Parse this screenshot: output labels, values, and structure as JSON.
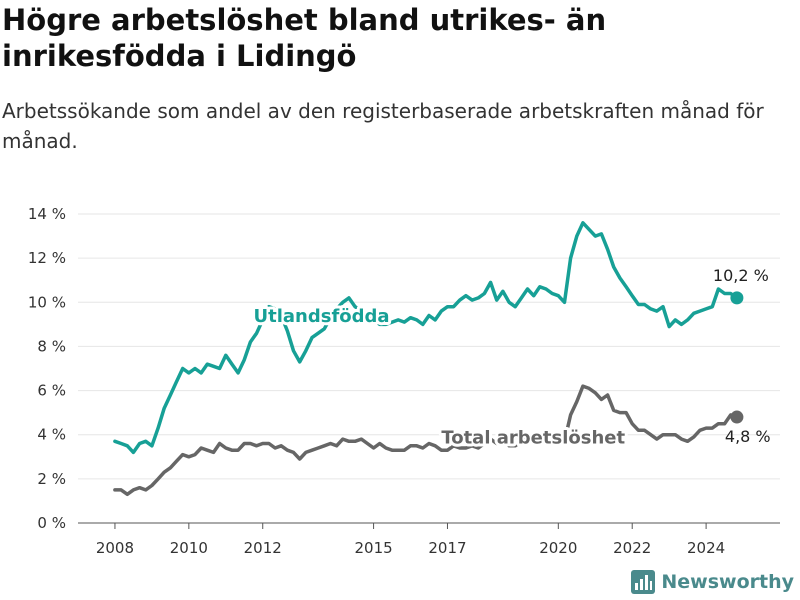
{
  "header": {
    "title": "Högre arbetslöshet bland utrikes- än inrikesfödda i Lidingö",
    "subtitle": "Arbetssökande som andel av den registerbaserade arbetskraften månad för månad."
  },
  "brand": {
    "name": "Newsworthy",
    "logo_icon": "bar-chart-logo-icon"
  },
  "chart_data": {
    "type": "line",
    "title": "",
    "xlabel": "",
    "ylabel": "",
    "xlim": [
      "2007-01",
      "2026-01"
    ],
    "ylim": [
      0,
      14
    ],
    "y_ticks": [
      "0 %",
      "2 %",
      "4 %",
      "6 %",
      "8 %",
      "10 %",
      "12 %",
      "14 %"
    ],
    "x_ticks": [
      "2008",
      "2010",
      "2012",
      "2015",
      "2017",
      "2020",
      "2022",
      "2024"
    ],
    "grid": "horizontal",
    "legend": "inline labels",
    "series": [
      {
        "name": "Utlandsfödda",
        "color": "#17a096",
        "end_label": "10,2 %",
        "points": [
          [
            "2008-01",
            3.7
          ],
          [
            "2008-03",
            3.6
          ],
          [
            "2008-05",
            3.5
          ],
          [
            "2008-07",
            3.2
          ],
          [
            "2008-09",
            3.6
          ],
          [
            "2008-11",
            3.7
          ],
          [
            "2009-01",
            3.5
          ],
          [
            "2009-03",
            4.3
          ],
          [
            "2009-05",
            5.2
          ],
          [
            "2009-07",
            5.8
          ],
          [
            "2009-09",
            6.4
          ],
          [
            "2009-11",
            7.0
          ],
          [
            "2010-01",
            6.8
          ],
          [
            "2010-03",
            7.0
          ],
          [
            "2010-05",
            6.8
          ],
          [
            "2010-07",
            7.2
          ],
          [
            "2010-09",
            7.1
          ],
          [
            "2010-11",
            7.0
          ],
          [
            "2011-01",
            7.6
          ],
          [
            "2011-03",
            7.2
          ],
          [
            "2011-05",
            6.8
          ],
          [
            "2011-07",
            7.4
          ],
          [
            "2011-09",
            8.2
          ],
          [
            "2011-11",
            8.6
          ],
          [
            "2012-01",
            9.2
          ],
          [
            "2012-03",
            9.8
          ],
          [
            "2012-05",
            9.7
          ],
          [
            "2012-07",
            9.4
          ],
          [
            "2012-09",
            8.7
          ],
          [
            "2012-11",
            7.8
          ],
          [
            "2013-01",
            7.3
          ],
          [
            "2013-03",
            7.8
          ],
          [
            "2013-05",
            8.4
          ],
          [
            "2013-07",
            8.6
          ],
          [
            "2013-09",
            8.8
          ],
          [
            "2013-11",
            9.3
          ],
          [
            "2014-01",
            9.7
          ],
          [
            "2014-03",
            10.0
          ],
          [
            "2014-05",
            10.2
          ],
          [
            "2014-07",
            9.8
          ],
          [
            "2014-09",
            9.6
          ],
          [
            "2014-11",
            9.4
          ],
          [
            "2015-01",
            9.2
          ],
          [
            "2015-03",
            9.0
          ],
          [
            "2015-05",
            9.0
          ],
          [
            "2015-07",
            9.1
          ],
          [
            "2015-09",
            9.2
          ],
          [
            "2015-11",
            9.1
          ],
          [
            "2016-01",
            9.3
          ],
          [
            "2016-03",
            9.2
          ],
          [
            "2016-05",
            9.0
          ],
          [
            "2016-07",
            9.4
          ],
          [
            "2016-09",
            9.2
          ],
          [
            "2016-11",
            9.6
          ],
          [
            "2017-01",
            9.8
          ],
          [
            "2017-03",
            9.8
          ],
          [
            "2017-05",
            10.1
          ],
          [
            "2017-07",
            10.3
          ],
          [
            "2017-09",
            10.1
          ],
          [
            "2017-11",
            10.2
          ],
          [
            "2018-01",
            10.4
          ],
          [
            "2018-03",
            10.9
          ],
          [
            "2018-05",
            10.1
          ],
          [
            "2018-07",
            10.5
          ],
          [
            "2018-09",
            10.0
          ],
          [
            "2018-11",
            9.8
          ],
          [
            "2019-01",
            10.2
          ],
          [
            "2019-03",
            10.6
          ],
          [
            "2019-05",
            10.3
          ],
          [
            "2019-07",
            10.7
          ],
          [
            "2019-09",
            10.6
          ],
          [
            "2019-11",
            10.4
          ],
          [
            "2020-01",
            10.3
          ],
          [
            "2020-03",
            10.0
          ],
          [
            "2020-05",
            12.0
          ],
          [
            "2020-07",
            13.0
          ],
          [
            "2020-09",
            13.6
          ],
          [
            "2020-11",
            13.3
          ],
          [
            "2021-01",
            13.0
          ],
          [
            "2021-03",
            13.1
          ],
          [
            "2021-05",
            12.4
          ],
          [
            "2021-07",
            11.6
          ],
          [
            "2021-09",
            11.1
          ],
          [
            "2021-11",
            10.7
          ],
          [
            "2022-01",
            10.3
          ],
          [
            "2022-03",
            9.9
          ],
          [
            "2022-05",
            9.9
          ],
          [
            "2022-07",
            9.7
          ],
          [
            "2022-09",
            9.6
          ],
          [
            "2022-11",
            9.8
          ],
          [
            "2023-01",
            8.9
          ],
          [
            "2023-03",
            9.2
          ],
          [
            "2023-05",
            9.0
          ],
          [
            "2023-07",
            9.2
          ],
          [
            "2023-09",
            9.5
          ],
          [
            "2023-11",
            9.6
          ],
          [
            "2024-01",
            9.7
          ],
          [
            "2024-03",
            9.8
          ],
          [
            "2024-05",
            10.6
          ],
          [
            "2024-07",
            10.4
          ],
          [
            "2024-09",
            10.4
          ],
          [
            "2024-11",
            10.2
          ]
        ]
      },
      {
        "name": "Total arbetslöshet",
        "color": "#666666",
        "end_label": "4,8 %",
        "points": [
          [
            "2008-01",
            1.5
          ],
          [
            "2008-03",
            1.5
          ],
          [
            "2008-05",
            1.3
          ],
          [
            "2008-07",
            1.5
          ],
          [
            "2008-09",
            1.6
          ],
          [
            "2008-11",
            1.5
          ],
          [
            "2009-01",
            1.7
          ],
          [
            "2009-03",
            2.0
          ],
          [
            "2009-05",
            2.3
          ],
          [
            "2009-07",
            2.5
          ],
          [
            "2009-09",
            2.8
          ],
          [
            "2009-11",
            3.1
          ],
          [
            "2010-01",
            3.0
          ],
          [
            "2010-03",
            3.1
          ],
          [
            "2010-05",
            3.4
          ],
          [
            "2010-07",
            3.3
          ],
          [
            "2010-09",
            3.2
          ],
          [
            "2010-11",
            3.6
          ],
          [
            "2011-01",
            3.4
          ],
          [
            "2011-03",
            3.3
          ],
          [
            "2011-05",
            3.3
          ],
          [
            "2011-07",
            3.6
          ],
          [
            "2011-09",
            3.6
          ],
          [
            "2011-11",
            3.5
          ],
          [
            "2012-01",
            3.6
          ],
          [
            "2012-03",
            3.6
          ],
          [
            "2012-05",
            3.4
          ],
          [
            "2012-07",
            3.5
          ],
          [
            "2012-09",
            3.3
          ],
          [
            "2012-11",
            3.2
          ],
          [
            "2013-01",
            2.9
          ],
          [
            "2013-03",
            3.2
          ],
          [
            "2013-05",
            3.3
          ],
          [
            "2013-07",
            3.4
          ],
          [
            "2013-09",
            3.5
          ],
          [
            "2013-11",
            3.6
          ],
          [
            "2014-01",
            3.5
          ],
          [
            "2014-03",
            3.8
          ],
          [
            "2014-05",
            3.7
          ],
          [
            "2014-07",
            3.7
          ],
          [
            "2014-09",
            3.8
          ],
          [
            "2014-11",
            3.6
          ],
          [
            "2015-01",
            3.4
          ],
          [
            "2015-03",
            3.6
          ],
          [
            "2015-05",
            3.4
          ],
          [
            "2015-07",
            3.3
          ],
          [
            "2015-09",
            3.3
          ],
          [
            "2015-11",
            3.3
          ],
          [
            "2016-01",
            3.5
          ],
          [
            "2016-03",
            3.5
          ],
          [
            "2016-05",
            3.4
          ],
          [
            "2016-07",
            3.6
          ],
          [
            "2016-09",
            3.5
          ],
          [
            "2016-11",
            3.3
          ],
          [
            "2017-01",
            3.3
          ],
          [
            "2017-03",
            3.5
          ],
          [
            "2017-05",
            3.4
          ],
          [
            "2017-07",
            3.4
          ],
          [
            "2017-09",
            3.5
          ],
          [
            "2017-11",
            3.4
          ],
          [
            "2018-01",
            3.6
          ],
          [
            "2018-03",
            3.8
          ],
          [
            "2018-05",
            3.6
          ],
          [
            "2018-07",
            3.7
          ],
          [
            "2018-09",
            3.5
          ],
          [
            "2018-11",
            3.5
          ],
          [
            "2019-01",
            3.7
          ],
          [
            "2019-03",
            3.8
          ],
          [
            "2019-05",
            3.6
          ],
          [
            "2019-07",
            3.8
          ],
          [
            "2019-09",
            3.7
          ],
          [
            "2019-11",
            3.8
          ],
          [
            "2020-01",
            3.6
          ],
          [
            "2020-03",
            3.7
          ],
          [
            "2020-05",
            4.9
          ],
          [
            "2020-07",
            5.5
          ],
          [
            "2020-09",
            6.2
          ],
          [
            "2020-11",
            6.1
          ],
          [
            "2021-01",
            5.9
          ],
          [
            "2021-03",
            5.6
          ],
          [
            "2021-05",
            5.8
          ],
          [
            "2021-07",
            5.1
          ],
          [
            "2021-09",
            5.0
          ],
          [
            "2021-11",
            5.0
          ],
          [
            "2022-01",
            4.5
          ],
          [
            "2022-03",
            4.2
          ],
          [
            "2022-05",
            4.2
          ],
          [
            "2022-07",
            4.0
          ],
          [
            "2022-09",
            3.8
          ],
          [
            "2022-11",
            4.0
          ],
          [
            "2023-01",
            4.0
          ],
          [
            "2023-03",
            4.0
          ],
          [
            "2023-05",
            3.8
          ],
          [
            "2023-07",
            3.7
          ],
          [
            "2023-09",
            3.9
          ],
          [
            "2023-11",
            4.2
          ],
          [
            "2024-01",
            4.3
          ],
          [
            "2024-03",
            4.3
          ],
          [
            "2024-05",
            4.5
          ],
          [
            "2024-07",
            4.5
          ],
          [
            "2024-09",
            4.9
          ],
          [
            "2024-11",
            4.8
          ]
        ]
      }
    ]
  }
}
